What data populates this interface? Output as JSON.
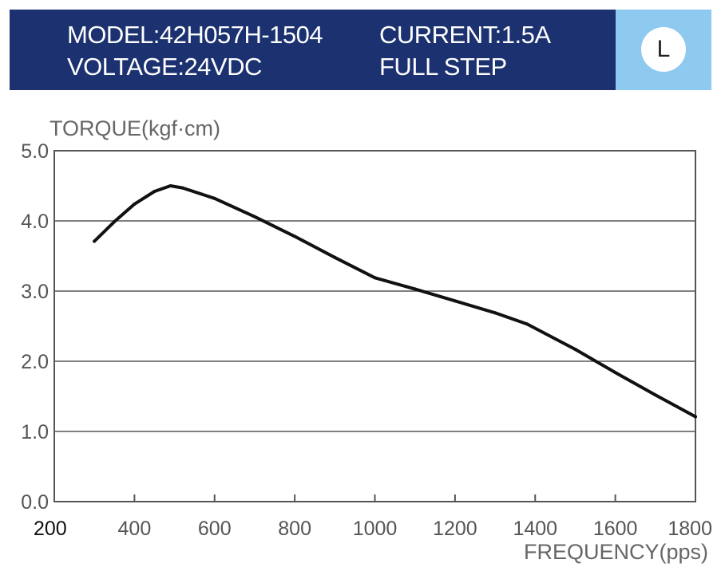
{
  "header": {
    "model": "MODEL:42H057H-1504",
    "current": "CURRENT:1.5A",
    "voltage": "VOLTAGE:24VDC",
    "mode": "FULL STEP",
    "badge": "L",
    "colors": {
      "banner": "#1b3170",
      "badge_bg": "#8ec9ef"
    }
  },
  "chart_data": {
    "type": "line",
    "title": "",
    "ylabel": "TORQUE(kgf·cm)",
    "xlabel": "FREQUENCY(pps)",
    "xlim": [
      200,
      1800
    ],
    "ylim": [
      0,
      5
    ],
    "x_ticks": [
      "200",
      "400",
      "600",
      "800",
      "1000",
      "1200",
      "1400",
      "1600",
      "1800"
    ],
    "y_ticks": [
      "0.0",
      "1.0",
      "2.0",
      "3.0",
      "4.0",
      "5.0"
    ],
    "grid": "horizontal",
    "legend": "none",
    "line_color": "#111111",
    "series": [
      {
        "x": [
          300,
          350,
          400,
          450,
          490,
          520,
          600,
          700,
          800,
          900,
          1000,
          1100,
          1200,
          1300,
          1380,
          1500,
          1600,
          1700,
          1800
        ],
        "y": [
          3.71,
          3.99,
          4.24,
          4.42,
          4.5,
          4.47,
          4.32,
          4.06,
          3.78,
          3.48,
          3.19,
          3.03,
          2.86,
          2.69,
          2.53,
          2.17,
          1.84,
          1.52,
          1.21
        ]
      }
    ]
  }
}
